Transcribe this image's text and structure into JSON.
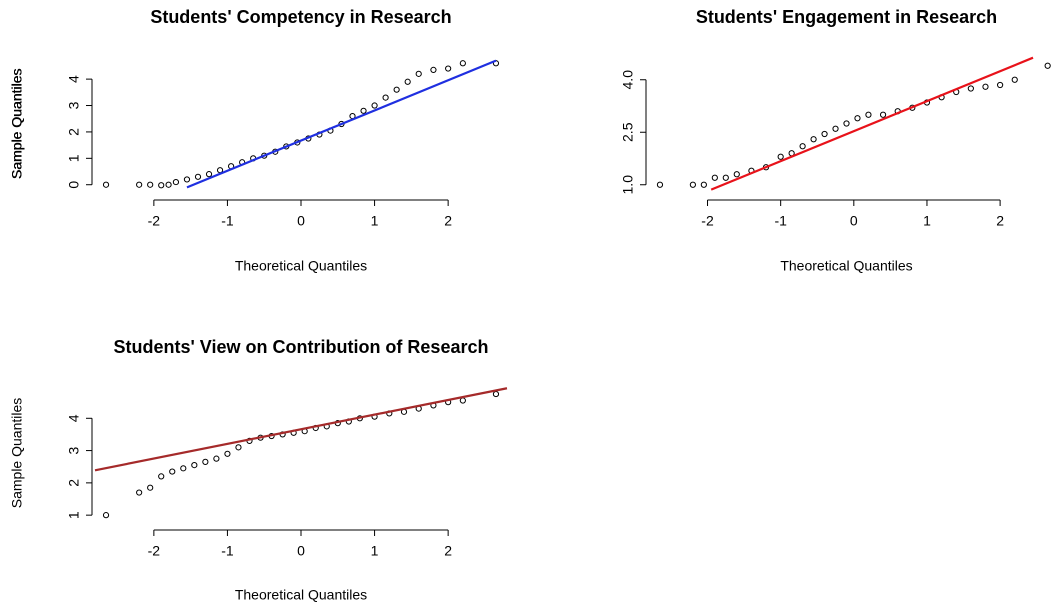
{
  "chart_data": [
    {
      "type": "scatter",
      "title": "Students' Competency in Research",
      "xlabel": "Theoretical Quantiles",
      "ylabel": "Sample Quantiles",
      "x": [
        -2.65,
        -2.2,
        -2.05,
        -1.9,
        -1.8,
        -1.7,
        -1.55,
        -1.4,
        -1.25,
        -1.1,
        -0.95,
        -0.8,
        -0.65,
        -0.5,
        -0.35,
        -0.2,
        -0.05,
        0.1,
        0.25,
        0.4,
        0.55,
        0.7,
        0.85,
        1.0,
        1.15,
        1.3,
        1.45,
        1.6,
        1.8,
        2.0,
        2.2,
        2.65
      ],
      "values": [
        0.0,
        0.0,
        0.0,
        -0.02,
        0.0,
        0.1,
        0.2,
        0.3,
        0.4,
        0.55,
        0.7,
        0.85,
        1.0,
        1.1,
        1.25,
        1.45,
        1.6,
        1.75,
        1.9,
        2.05,
        2.3,
        2.6,
        2.8,
        3.0,
        3.3,
        3.6,
        3.9,
        4.2,
        4.35,
        4.4,
        4.6,
        4.6
      ],
      "color": "#000000",
      "line": {
        "x": [
          -1.55,
          2.65
        ],
        "y": [
          -0.1,
          4.7
        ],
        "color": "#1f2fe0"
      },
      "xlim": [
        -2.8,
        2.8
      ],
      "ylim": [
        -0.2,
        4.8
      ],
      "xticks": [
        -2,
        -1,
        0,
        1,
        2
      ],
      "yticks": [
        0,
        1,
        2,
        3,
        4
      ]
    },
    {
      "type": "scatter",
      "title": "Students' Engagement in Research",
      "xlabel": "Theoretical Quantiles",
      "ylabel": "Sample Quantiles",
      "x": [
        -2.65,
        -2.2,
        -2.05,
        -1.9,
        -1.75,
        -1.6,
        -1.4,
        -1.2,
        -1.0,
        -0.85,
        -0.7,
        -0.55,
        -0.4,
        -0.25,
        -0.1,
        0.05,
        0.2,
        0.4,
        0.6,
        0.8,
        1.0,
        1.2,
        1.4,
        1.6,
        1.8,
        2.0,
        2.2,
        2.65
      ],
      "values": [
        1.0,
        1.0,
        1.0,
        1.2,
        1.2,
        1.3,
        1.4,
        1.5,
        1.8,
        1.9,
        2.1,
        2.3,
        2.45,
        2.6,
        2.75,
        2.9,
        3.0,
        3.0,
        3.1,
        3.2,
        3.35,
        3.5,
        3.65,
        3.75,
        3.8,
        3.85,
        4.0,
        4.4
      ],
      "color": "#000000",
      "line": {
        "x": [
          -1.95,
          2.45
        ],
        "y": [
          0.86,
          4.63
        ],
        "color": "#e8121a"
      },
      "xlim": [
        -2.8,
        2.6
      ],
      "ylim": [
        0.85,
        4.65
      ],
      "xticks": [
        -2,
        -1,
        0,
        1,
        2
      ],
      "yticks": [
        {
          "value": 1,
          "label": "1.0"
        },
        {
          "value": 2.5,
          "label": "2.5"
        },
        {
          "value": 4,
          "label": "4.0"
        }
      ]
    },
    {
      "type": "scatter",
      "title": "Students' View on Contribution of Research",
      "xlabel": "Theoretical Quantiles",
      "ylabel": "Sample Quantiles",
      "x": [
        -2.65,
        -2.2,
        -2.05,
        -1.9,
        -1.75,
        -1.6,
        -1.45,
        -1.3,
        -1.15,
        -1.0,
        -0.85,
        -0.7,
        -0.55,
        -0.4,
        -0.25,
        -0.1,
        0.05,
        0.2,
        0.35,
        0.5,
        0.65,
        0.8,
        1.0,
        1.2,
        1.4,
        1.6,
        1.8,
        2.0,
        2.2,
        2.65
      ],
      "values": [
        1.0,
        1.7,
        1.85,
        2.2,
        2.35,
        2.45,
        2.55,
        2.65,
        2.75,
        2.9,
        3.1,
        3.3,
        3.4,
        3.45,
        3.5,
        3.55,
        3.6,
        3.7,
        3.75,
        3.85,
        3.9,
        4.0,
        4.05,
        4.15,
        4.2,
        4.3,
        4.4,
        4.5,
        4.55,
        4.75
      ],
      "color": "#000000",
      "line": {
        "x": [
          -2.8,
          2.8
        ],
        "y": [
          2.39,
          4.93
        ],
        "color": "#a52a2a"
      },
      "xlim": [
        -2.8,
        2.8
      ],
      "ylim": [
        0.85,
        5.0
      ],
      "xticks": [
        -2,
        -1,
        0,
        1,
        2
      ],
      "yticks": [
        1,
        2,
        3,
        4
      ]
    }
  ]
}
